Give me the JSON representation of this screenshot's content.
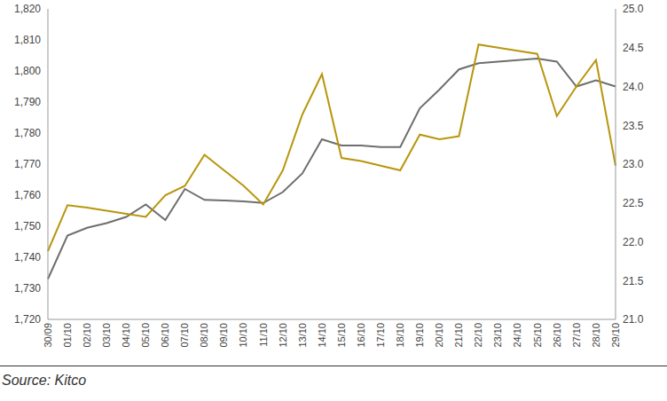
{
  "chart_data": {
    "type": "line",
    "source": "Source: Kitco",
    "categories": [
      "30/09",
      "01/10",
      "02/10",
      "03/10",
      "04/10",
      "05/10",
      "06/10",
      "07/10",
      "08/10",
      "09/10",
      "10/10",
      "11/10",
      "12/10",
      "13/10",
      "14/10",
      "15/10",
      "16/10",
      "17/10",
      "18/10",
      "19/10",
      "20/10",
      "21/10",
      "22/10",
      "23/10",
      "24/10",
      "25/10",
      "26/10",
      "27/10",
      "28/10",
      "29/10"
    ],
    "series": [
      {
        "color": "#6e6e6e",
        "axis": "y",
        "values": [
          1733,
          1747,
          1749.5,
          1751,
          1753,
          1757,
          1752,
          1762,
          1758.5,
          1758.3,
          1758,
          1757.5,
          1761,
          1767,
          1778,
          1776,
          1776,
          1775.5,
          1775.5,
          1788,
          1794,
          1800.5,
          1802.5,
          1803,
          1803.5,
          1804,
          1803,
          1795,
          1797,
          1795
        ]
      },
      {
        "color": "#b8960c",
        "axis": "y2",
        "values": [
          21.88,
          22.47,
          22.44,
          22.4,
          22.36,
          22.32,
          22.6,
          22.72,
          23.12,
          22.92,
          22.72,
          22.48,
          22.92,
          23.64,
          24.16,
          23.08,
          23.04,
          22.98,
          22.92,
          23.38,
          23.32,
          23.36,
          24.54,
          24.5,
          24.46,
          24.42,
          23.62,
          24.0,
          24.34,
          22.98
        ]
      }
    ],
    "ylim": [
      1720,
      1820
    ],
    "yticks": [
      {
        "value": 1720,
        "label": "1,720"
      },
      {
        "value": 1730,
        "label": "1,730"
      },
      {
        "value": 1740,
        "label": "1,740"
      },
      {
        "value": 1750,
        "label": "1,750"
      },
      {
        "value": 1760,
        "label": "1,760"
      },
      {
        "value": 1770,
        "label": "1,770"
      },
      {
        "value": 1780,
        "label": "1,780"
      },
      {
        "value": 1790,
        "label": "1,790"
      },
      {
        "value": 1800,
        "label": "1,800"
      },
      {
        "value": 1810,
        "label": "1,810"
      },
      {
        "value": 1820,
        "label": "1,820"
      }
    ],
    "y2lim": [
      21,
      25
    ],
    "y2ticks": [
      {
        "value": 21,
        "label": "21.0"
      },
      21.5,
      {
        "value": 22,
        "label": "22.0"
      },
      22.5,
      {
        "value": 23,
        "label": "23.0"
      },
      23.5,
      {
        "value": 24,
        "label": "24.0"
      },
      24.5,
      {
        "value": 25,
        "label": "25.0"
      }
    ],
    "grid": false
  }
}
